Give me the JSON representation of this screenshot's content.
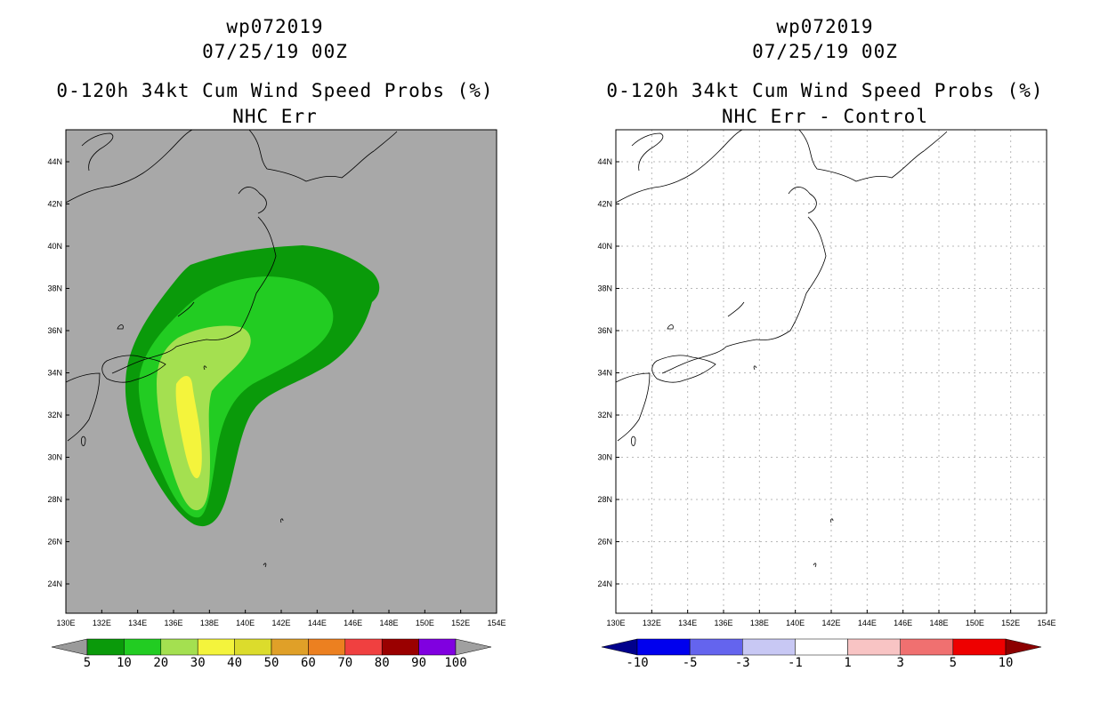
{
  "left_panel": {
    "title_storm": "wp072019",
    "title_time": "07/25/19 00Z",
    "title_product": "0-120h 34kt Cum Wind Speed Probs (%)",
    "title_sub": "NHC Err",
    "colorbar": {
      "labels": [
        "5",
        "10",
        "20",
        "30",
        "40",
        "50",
        "60",
        "70",
        "80",
        "90",
        "100"
      ],
      "colors": [
        "#9a9a9a",
        "#0a9a0a",
        "#22cc22",
        "#a4e050",
        "#f4f43c",
        "#dcdc2c",
        "#e0a028",
        "#ec8020",
        "#f04040",
        "#9a0000",
        "#8000e0",
        "#a0a0a0"
      ]
    },
    "background_color": "#a8a8a8"
  },
  "right_panel": {
    "title_storm": "wp072019",
    "title_time": "07/25/19 00Z",
    "title_product": "0-120h 34kt Cum Wind Speed Probs (%)",
    "title_sub": "NHC Err - Control",
    "colorbar": {
      "labels": [
        "-10",
        "-5",
        "-3",
        "-1",
        "1",
        "3",
        "5",
        "10"
      ],
      "colors": [
        "#00008c",
        "#0000ee",
        "#6464ee",
        "#c8c8f4",
        "#ffffff",
        "#f8c4c4",
        "#f07070",
        "#ee0000",
        "#8c0000"
      ]
    },
    "background_color": "#ffffff"
  },
  "map": {
    "lat_labels": [
      "44N",
      "42N",
      "40N",
      "38N",
      "36N",
      "34N",
      "32N",
      "30N",
      "28N",
      "26N",
      "24N"
    ],
    "lon_labels": [
      "130E",
      "132E",
      "134E",
      "136E",
      "138E",
      "140E",
      "142E",
      "144E",
      "146E",
      "148E",
      "150E",
      "152E",
      "154E"
    ]
  }
}
